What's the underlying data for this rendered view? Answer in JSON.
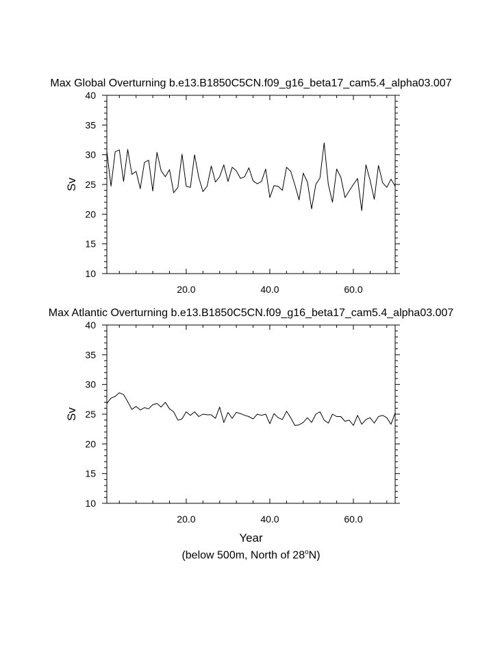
{
  "caption": {
    "prefix": "(below 500m, North of 28",
    "sup": "o",
    "suffix": "N)"
  },
  "chart_data": [
    {
      "type": "line",
      "title": "Max Global Overturning b.e13.B1850C5CN.f09_g16_beta17_cam5.4_alpha03.007",
      "xlabel": "",
      "ylabel": "Sv",
      "xlim": [
        1,
        70
      ],
      "ylim": [
        10,
        40
      ],
      "xticks": [
        20,
        40,
        60
      ],
      "xtick_labels": [
        "20.0",
        "40.0",
        "60.0"
      ],
      "yticks": [
        10,
        15,
        20,
        25,
        30,
        35,
        40
      ],
      "ytick_labels": [
        "10",
        "15",
        "20",
        "25",
        "30",
        "35",
        "40"
      ],
      "grid": false,
      "series": [
        {
          "color": "#000000",
          "x": [
            1,
            2,
            3,
            4,
            5,
            6,
            7,
            8,
            9,
            10,
            11,
            12,
            13,
            14,
            15,
            16,
            17,
            18,
            19,
            20,
            21,
            22,
            23,
            24,
            25,
            26,
            27,
            28,
            29,
            30,
            31,
            32,
            33,
            34,
            35,
            36,
            37,
            38,
            39,
            40,
            41,
            42,
            43,
            44,
            45,
            46,
            47,
            48,
            49,
            50,
            51,
            52,
            53,
            54,
            55,
            56,
            57,
            58,
            59,
            60,
            61,
            62,
            63,
            64,
            65,
            66,
            67,
            68,
            69,
            70
          ],
          "y": [
            30.6,
            24.7,
            30.5,
            30.8,
            25.5,
            30.9,
            26.7,
            27.2,
            24.3,
            28.7,
            29.1,
            23.9,
            30.4,
            27.3,
            26.3,
            27.5,
            23.6,
            24.5,
            30.1,
            24.7,
            24.5,
            30.0,
            26.2,
            23.8,
            24.7,
            28.1,
            25.4,
            26.3,
            28.3,
            25.5,
            27.9,
            27.3,
            26.0,
            26.3,
            27.8,
            25.6,
            25.1,
            25.5,
            27.6,
            22.8,
            24.8,
            24.7,
            24.0,
            27.9,
            27.2,
            24.9,
            22.4,
            26.9,
            25.4,
            20.9,
            25.0,
            26.1,
            32.0,
            25.0,
            22.0,
            27.6,
            26.2,
            22.8,
            23.9,
            25.0,
            26.0,
            20.6,
            28.3,
            25.7,
            22.5,
            28.2,
            25.3,
            24.5,
            25.9,
            24.7
          ]
        }
      ]
    },
    {
      "type": "line",
      "title": "Max Atlantic Overturning b.e13.B1850C5CN.f09_g16_beta17_cam5.4_alpha03.007",
      "xlabel": "Year",
      "ylabel": "Sv",
      "xlim": [
        1,
        70
      ],
      "ylim": [
        10,
        40
      ],
      "xticks": [
        20,
        40,
        60
      ],
      "xtick_labels": [
        "20.0",
        "40.0",
        "60.0"
      ],
      "yticks": [
        10,
        15,
        20,
        25,
        30,
        35,
        40
      ],
      "ytick_labels": [
        "10",
        "15",
        "20",
        "25",
        "30",
        "35",
        "40"
      ],
      "grid": false,
      "series": [
        {
          "color": "#000000",
          "x": [
            1,
            2,
            3,
            4,
            5,
            6,
            7,
            8,
            9,
            10,
            11,
            12,
            13,
            14,
            15,
            16,
            17,
            18,
            19,
            20,
            21,
            22,
            23,
            24,
            25,
            26,
            27,
            28,
            29,
            30,
            31,
            32,
            33,
            34,
            35,
            36,
            37,
            38,
            39,
            40,
            41,
            42,
            43,
            44,
            45,
            46,
            47,
            48,
            49,
            50,
            51,
            52,
            53,
            54,
            55,
            56,
            57,
            58,
            59,
            60,
            61,
            62,
            63,
            64,
            65,
            66,
            67,
            68,
            69,
            70
          ],
          "y": [
            26.8,
            27.7,
            28.0,
            28.6,
            28.3,
            27.1,
            25.8,
            26.3,
            25.7,
            26.1,
            25.9,
            26.6,
            26.8,
            26.2,
            27.0,
            25.9,
            25.4,
            24.0,
            24.2,
            25.4,
            24.8,
            25.4,
            24.6,
            25.0,
            24.9,
            24.9,
            24.3,
            26.2,
            23.6,
            25.3,
            24.3,
            25.3,
            25.1,
            24.8,
            24.6,
            24.2,
            25.0,
            24.8,
            25.0,
            23.4,
            25.1,
            24.4,
            24.1,
            25.5,
            24.4,
            23.1,
            23.2,
            23.6,
            24.4,
            23.6,
            25.0,
            25.4,
            24.0,
            23.5,
            25.0,
            24.6,
            24.6,
            23.8,
            24.0,
            23.1,
            24.8,
            23.3,
            24.1,
            24.4,
            23.5,
            24.6,
            24.8,
            24.4,
            23.3,
            25.2
          ]
        }
      ]
    }
  ]
}
